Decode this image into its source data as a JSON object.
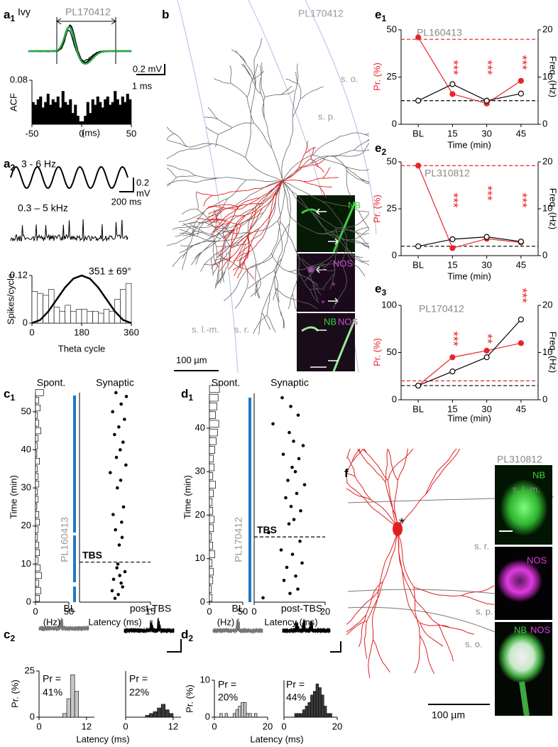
{
  "panel_labels": [
    {
      "letter": "a",
      "sub": "1"
    },
    {
      "letter": "a",
      "sub": "2"
    },
    {
      "letter": "b",
      "sub": ""
    },
    {
      "letter": "c",
      "sub": "1"
    },
    {
      "letter": "c",
      "sub": "2"
    },
    {
      "letter": "d",
      "sub": "1"
    },
    {
      "letter": "d",
      "sub": "2"
    },
    {
      "letter": "e",
      "sub": "1"
    },
    {
      "letter": "e",
      "sub": "2"
    },
    {
      "letter": "e",
      "sub": "3"
    },
    {
      "letter": "f",
      "sub": ""
    }
  ],
  "texts": {
    "a1": [
      "Ivy",
      "PL170412",
      "0.2 mV",
      "1 ms"
    ],
    "a2": [
      "3 - 6 Hz",
      "0.2",
      "mV",
      "200 ms",
      "0.3 – 5 kHz"
    ],
    "b": [
      "PL170412",
      "s. o.",
      "s. p.",
      "s. l.-m.",
      "s. r.",
      "100 µm",
      "NB",
      "NOS",
      "NB",
      "NOS"
    ],
    "f": [
      "PL310812",
      "s. l.-m.",
      "s. r.",
      "s. p.",
      "s. o.",
      "100 µm",
      "*",
      "NB",
      "NOS",
      "NB",
      "NOS"
    ]
  },
  "chart_data": [
    {
      "type": "histogram",
      "ylabel": "ACF",
      "xlabel": "(ms)",
      "color": "#000000",
      "bins": [
        -50,
        -47.5,
        -45,
        -42.5,
        -40,
        -37.5,
        -35,
        -32.5,
        -30,
        -27.5,
        -25,
        -22.5,
        -20,
        -17.5,
        -15,
        -12.5,
        -10,
        -7.5,
        -5,
        -2.5,
        0,
        2.5,
        5,
        7.5,
        10,
        12.5,
        15,
        17.5,
        20,
        22.5,
        25,
        27.5,
        30,
        32.5,
        35,
        37.5,
        40,
        42.5,
        45,
        47.5,
        50
      ],
      "values": [
        0.04,
        0.035,
        0.045,
        0.05,
        0.03,
        0.04,
        0.055,
        0.035,
        0.045,
        0.04,
        0.05,
        0.03,
        0.06,
        0.04,
        0.035,
        0.045,
        0.02,
        0.035,
        0.015,
        0.005,
        0.005,
        0.015,
        0.04,
        0.02,
        0.045,
        0.035,
        0.05,
        0.04,
        0.03,
        0.045,
        0.05,
        0.035,
        0.04,
        0.06,
        0.045,
        0.035,
        0.05,
        0.04,
        0.055,
        0.045
      ],
      "xlim": [
        -50,
        50
      ],
      "xticks": [
        -50,
        0,
        50
      ],
      "ylim": [
        0,
        0.08
      ],
      "yticks": [
        0.08
      ]
    },
    {
      "type": "histogram",
      "ylabel": "Spikes/cycle",
      "xlabel": "Theta cycle",
      "color": "#ffffff",
      "bins": [
        0,
        20,
        40,
        60,
        80,
        100,
        120,
        140,
        160,
        180,
        200,
        220,
        240,
        260,
        280,
        300,
        320,
        340,
        360
      ],
      "values": [
        0.08,
        0.075,
        0.07,
        0.085,
        0.04,
        0.03,
        0.045,
        0.03,
        0.035,
        0.035,
        0.03,
        0.03,
        0.025,
        0.035,
        0.03,
        0.06,
        0.085,
        0.1
      ],
      "curve": {
        "x": [
          0,
          30,
          60,
          90,
          120,
          150,
          180,
          210,
          240,
          270,
          300,
          330,
          360
        ],
        "y": [
          0,
          0.008,
          0.03,
          0.06,
          0.09,
          0.112,
          0.12,
          0.112,
          0.09,
          0.06,
          0.03,
          0.008,
          0
        ]
      },
      "annotations": [
        "351 ± 69°"
      ],
      "xlim": [
        0,
        360
      ],
      "xticks": [
        0,
        180,
        360
      ],
      "ylim": [
        0,
        0.12
      ],
      "yticks": [
        0,
        0.12
      ]
    },
    {
      "type": "line",
      "title": "PL160413",
      "ylabel": "Pr. (%)",
      "y2label": "Freq. (Hz)",
      "xlabel": "Time  (min)",
      "categories": [
        "BL",
        "15",
        "30",
        "45"
      ],
      "series": [
        {
          "color": "#e8242a",
          "marker": "filled",
          "values": [
            46,
            16,
            11,
            23
          ]
        },
        {
          "color": "#000000",
          "marker": "open",
          "axis": "y2",
          "values": [
            5,
            8.5,
            5,
            6.5
          ]
        }
      ],
      "hlines": [
        {
          "value": 45,
          "color": "#e8242a"
        },
        {
          "value": 5,
          "axis": "y2",
          "color": "#000000"
        }
      ],
      "annotations": [
        "***",
        "***",
        "***"
      ],
      "ylim": [
        0,
        50
      ],
      "yticks": [
        0,
        25,
        50
      ],
      "y2lim": [
        0,
        20
      ],
      "y2ticks": [
        0,
        10,
        20
      ]
    },
    {
      "type": "line",
      "title": "PL310812",
      "ylabel": "Pr. (%)",
      "y2label": "Freq. (Hz)",
      "xlabel": "Time  (min)",
      "categories": [
        "BL",
        "15",
        "30",
        "45"
      ],
      "series": [
        {
          "color": "#e8242a",
          "marker": "filled",
          "values": [
            48,
            4,
            9,
            7
          ]
        },
        {
          "color": "#000000",
          "marker": "open",
          "axis": "y2",
          "values": [
            2,
            3.5,
            4,
            3
          ]
        }
      ],
      "hlines": [
        {
          "value": 48,
          "color": "#e8242a"
        },
        {
          "value": 2,
          "axis": "y2",
          "color": "#000000"
        }
      ],
      "annotations": [
        "***",
        "***",
        "***"
      ],
      "ylim": [
        0,
        50
      ],
      "yticks": [
        0,
        25,
        50
      ],
      "y2lim": [
        0,
        20
      ],
      "y2ticks": [
        0,
        10,
        20
      ]
    },
    {
      "type": "line",
      "title": "PL170412",
      "ylabel": "Pr. (%)",
      "y2label": "Freq. (Hz)",
      "xlabel": "Time  (min)",
      "categories": [
        "BL",
        "15",
        "30",
        "45"
      ],
      "series": [
        {
          "color": "#e8242a",
          "marker": "filled",
          "values": [
            15,
            45,
            52,
            60
          ]
        },
        {
          "color": "#000000",
          "marker": "open",
          "axis": "y2",
          "values": [
            3,
            6,
            9,
            17
          ]
        }
      ],
      "hlines": [
        {
          "value": 20,
          "color": "#e8242a"
        },
        {
          "value": 3,
          "axis": "y2",
          "color": "#000000"
        }
      ],
      "annotations": [
        "***",
        "**",
        "***"
      ],
      "ylim": [
        0,
        100
      ],
      "yticks": [
        0,
        50,
        100
      ],
      "y2lim": [
        0,
        20
      ],
      "y2ticks": [
        0,
        10,
        20
      ]
    },
    {
      "type": "barh",
      "title": "Spont.",
      "ylabel": "Time (min)",
      "xlabel": "(Hz)",
      "color": "#ffffff",
      "x": [
        1,
        3,
        5,
        7,
        9,
        11,
        13,
        15,
        17,
        19,
        21,
        23,
        25,
        27,
        29,
        31,
        33,
        35,
        37,
        39,
        41,
        43,
        45,
        47,
        49,
        51,
        53,
        55
      ],
      "values": [
        6,
        8,
        5,
        9,
        7,
        4,
        6,
        5,
        3,
        4,
        6,
        5,
        2,
        4,
        3,
        5,
        4,
        3,
        6,
        2,
        3,
        4,
        8,
        5,
        3,
        7,
        5,
        12
      ],
      "xlim": [
        0,
        50
      ],
      "xticks": [
        0,
        50
      ],
      "ylim": [
        0,
        55
      ],
      "yticks": [
        0,
        10,
        20,
        30,
        40,
        50
      ]
    },
    {
      "type": "scatter",
      "title": "Synaptic",
      "xlabel": "Latency (ms)",
      "color": "#000000",
      "x": [
        7.5,
        8.2,
        6.9,
        9.1,
        8.8,
        7.2,
        8.5,
        9.6,
        7.9,
        8.1,
        8.4,
        9.0,
        7.6,
        8.9,
        7.1,
        9.3,
        8.0,
        8.7,
        6.5,
        9.8,
        7.8,
        8.6,
        9.2,
        7.4,
        8.3,
        9.5,
        7.0,
        8.8,
        9.9,
        7.7
      ],
      "values": [
        1,
        2,
        3,
        4,
        5,
        6,
        7,
        8,
        9,
        10,
        15,
        17,
        19,
        21,
        23,
        25,
        30,
        32,
        34,
        36,
        38,
        40,
        42,
        44,
        46,
        48,
        50,
        52,
        54,
        55
      ],
      "hlines": [
        {
          "value": 10.5,
          "label": "TBS",
          "color": "#000000"
        }
      ],
      "annotations": [
        "PL160413"
      ],
      "xlim": [
        0,
        15
      ],
      "xticks": [
        15
      ],
      "ylim": [
        0,
        55
      ]
    },
    {
      "type": "barh",
      "title": "Spont.",
      "ylabel": "Time (min)",
      "xlabel": "(Hz)",
      "color": "#ffffff",
      "x": [
        1,
        3,
        5,
        7,
        9,
        11,
        13,
        15,
        17,
        19,
        21,
        23,
        25,
        27,
        29,
        31,
        33,
        35,
        37,
        39,
        41,
        43,
        45,
        47,
        49
      ],
      "values": [
        4,
        3,
        5,
        6,
        4,
        8,
        5,
        3,
        6,
        7,
        5,
        4,
        6,
        9,
        5,
        7,
        6,
        8,
        10,
        12,
        14,
        9,
        11,
        13,
        15
      ],
      "xlim": [
        0,
        50
      ],
      "xticks": [
        0,
        50
      ],
      "ylim": [
        0,
        48
      ],
      "yticks": [
        0,
        10,
        20,
        30,
        40
      ]
    },
    {
      "type": "scatter",
      "title": "Synaptic",
      "xlabel": "Latency (ms)",
      "color": "#000000",
      "x": [
        2.5,
        10.1,
        12.3,
        8.4,
        11.7,
        9.2,
        13.5,
        10.8,
        7.6,
        12.9,
        4.1,
        9.8,
        11.2,
        13.1,
        10.4,
        8.9,
        12.0,
        14.2,
        9.5,
        11.6,
        10.7,
        12.6,
        8.2,
        13.8,
        11.1,
        9.9,
        5.3,
        12.4,
        10.3,
        7.9
      ],
      "values": [
        1,
        2,
        3,
        5,
        6,
        8,
        9,
        11,
        12,
        14,
        16,
        18,
        19,
        21,
        22,
        24,
        25,
        27,
        28,
        30,
        31,
        33,
        34,
        36,
        37,
        39,
        41,
        43,
        45,
        47
      ],
      "hlines": [
        {
          "value": 15,
          "label": "TBS",
          "color": "#000000"
        }
      ],
      "annotations": [
        "PL170412"
      ],
      "xlim": [
        0,
        20
      ],
      "xticks": [
        0,
        20
      ],
      "ylim": [
        0,
        48
      ]
    },
    {
      "type": "histogram",
      "title": "BL",
      "ylabel": "Pr. (%)",
      "xlabel": "Latency (ms)",
      "color": "#c8c8c8",
      "bins": [
        0,
        1,
        2,
        3,
        4,
        5,
        6,
        7,
        8,
        9,
        10,
        11,
        12,
        13,
        14
      ],
      "values": [
        0,
        0,
        0,
        0,
        0,
        0,
        2,
        10,
        23,
        14,
        0,
        0,
        0,
        0
      ],
      "annotations": [
        "Pr =",
        "41%"
      ],
      "xlim": [
        0,
        14
      ],
      "xticks": [
        0,
        12
      ],
      "ylim": [
        0,
        25
      ],
      "yticks": [
        0,
        25
      ]
    },
    {
      "type": "histogram",
      "title": "post-TBS",
      "color": "#3a3a3a",
      "bins": [
        0,
        1,
        2,
        3,
        4,
        5,
        6,
        7,
        8,
        9,
        10,
        11,
        12,
        13,
        14
      ],
      "values": [
        0,
        0,
        0,
        0,
        0,
        1,
        2,
        3,
        5,
        7,
        4,
        2,
        0,
        0
      ],
      "annotations": [
        "Pr =",
        "22%"
      ],
      "xlim": [
        0,
        14
      ],
      "xticks": [
        0,
        12
      ],
      "ylim": [
        0,
        25
      ]
    },
    {
      "type": "histogram",
      "title": "BL",
      "ylabel": "Pr. (%)",
      "xlabel": "Latency (ms)",
      "color": "#c8c8c8",
      "bins": [
        0,
        1,
        2,
        3,
        4,
        5,
        6,
        7,
        8,
        9,
        10,
        11,
        12,
        13,
        14,
        15,
        16,
        17,
        18,
        19,
        20
      ],
      "values": [
        0,
        0,
        1,
        0,
        1,
        0,
        0,
        1,
        2,
        3,
        4,
        4,
        1,
        1,
        0,
        1,
        0,
        0,
        0,
        0
      ],
      "annotations": [
        "Pr =",
        "20%"
      ],
      "xlim": [
        0,
        20
      ],
      "xticks": [
        0,
        20
      ],
      "ylim": [
        0,
        10
      ],
      "yticks": [
        0,
        10
      ]
    },
    {
      "type": "histogram",
      "title": "post-TBS",
      "color": "#3a3a3a",
      "bins": [
        0,
        1,
        2,
        3,
        4,
        5,
        6,
        7,
        8,
        9,
        10,
        11,
        12,
        13,
        14,
        15,
        16,
        17,
        18,
        19,
        20
      ],
      "values": [
        0,
        0,
        0,
        0,
        1,
        1,
        1,
        2,
        3,
        4,
        6,
        7,
        9,
        8,
        6,
        3,
        1,
        1,
        0,
        0
      ],
      "annotations": [
        "Pr =",
        "44%"
      ],
      "xlim": [
        0,
        20
      ],
      "xticks": [
        0,
        20
      ],
      "ylim": [
        0,
        10
      ]
    }
  ]
}
